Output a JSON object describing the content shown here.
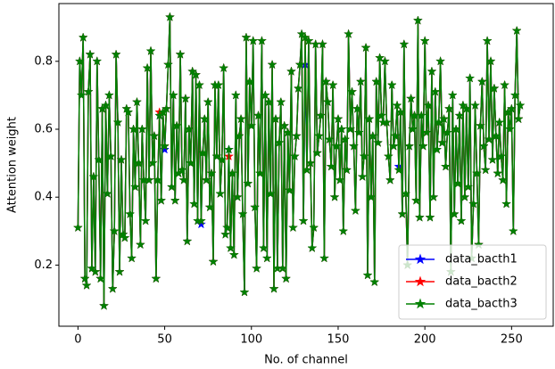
{
  "chart_data": {
    "type": "line",
    "xlabel": "No. of channel",
    "ylabel": "Attention weight",
    "xlim": [
      -11,
      274
    ],
    "ylim": [
      0.02,
      0.97
    ],
    "xticks": [
      0,
      50,
      100,
      150,
      200,
      250
    ],
    "yticks": [
      0.2,
      0.4,
      0.6,
      0.8
    ],
    "legend": "lower right",
    "marker": "star",
    "series": [
      {
        "name": "data_bacth1",
        "color": "#0000ff",
        "values": [
          0.31,
          0.8,
          0.7,
          0.87,
          0.16,
          0.14,
          0.71,
          0.82,
          0.19,
          0.46,
          0.18,
          0.8,
          0.51,
          0.16,
          0.66,
          0.08,
          0.67,
          0.41,
          0.7,
          0.52,
          0.13,
          0.3,
          0.82,
          0.62,
          0.18,
          0.51,
          0.29,
          0.28,
          0.66,
          0.65,
          0.35,
          0.22,
          0.6,
          0.43,
          0.68,
          0.5,
          0.26,
          0.6,
          0.45,
          0.33,
          0.78,
          0.45,
          0.83,
          0.5,
          0.58,
          0.16,
          0.45,
          0.64,
          0.39,
          0.65,
          0.54,
          0.66,
          0.79,
          0.93,
          0.43,
          0.7,
          0.39,
          0.61,
          0.47,
          0.82,
          0.48,
          0.45,
          0.69,
          0.27,
          0.6,
          0.5,
          0.77,
          0.38,
          0.76,
          0.33,
          0.73,
          0.32,
          0.53,
          0.63,
          0.45,
          0.68,
          0.37,
          0.47,
          0.21,
          0.73,
          0.52,
          0.73,
          0.41,
          0.51,
          0.78,
          0.29,
          0.31,
          0.54,
          0.25,
          0.47,
          0.23,
          0.7,
          0.4,
          0.58,
          0.63,
          0.35,
          0.12,
          0.87,
          0.44,
          0.74,
          0.61,
          0.86,
          0.37,
          0.19,
          0.64,
          0.47,
          0.86,
          0.25,
          0.7,
          0.22,
          0.68,
          0.41,
          0.79,
          0.13,
          0.63,
          0.19,
          0.56,
          0.68,
          0.19,
          0.61,
          0.16,
          0.59,
          0.42,
          0.77,
          0.31,
          0.52,
          0.58,
          0.72,
          0.79,
          0.88,
          0.33,
          0.79,
          0.48,
          0.86,
          0.5,
          0.25,
          0.31,
          0.85,
          0.53,
          0.58,
          0.64,
          0.85,
          0.22,
          0.74,
          0.68,
          0.57,
          0.49,
          0.73,
          0.4,
          0.55,
          0.63,
          0.45,
          0.6,
          0.3,
          0.57,
          0.48,
          0.88,
          0.6,
          0.71,
          0.55,
          0.36,
          0.66,
          0.59,
          0.74,
          0.46,
          0.52,
          0.84,
          0.17,
          0.63,
          0.4,
          0.58,
          0.15,
          0.74,
          0.56,
          0.81,
          0.64,
          0.62,
          0.8,
          0.62,
          0.52,
          0.45,
          0.73,
          0.55,
          0.58,
          0.67,
          0.49,
          0.65,
          0.35,
          0.85,
          0.41,
          0.2,
          0.55,
          0.69,
          0.6,
          0.64,
          0.39,
          0.92,
          0.34,
          0.64,
          0.55,
          0.86,
          0.59,
          0.67,
          0.34,
          0.77,
          0.4,
          0.71,
          0.54,
          0.62,
          0.8,
          0.56,
          0.63,
          0.49,
          0.59,
          0.66,
          0.18,
          0.7,
          0.35,
          0.6,
          0.44,
          0.64,
          0.33,
          0.67,
          0.4,
          0.66,
          0.43,
          0.75,
          0.22,
          0.38,
          0.67,
          0.47,
          0.26,
          0.61,
          0.74,
          0.55,
          0.48,
          0.86,
          0.57,
          0.8,
          0.51,
          0.72,
          0.58,
          0.47,
          0.62,
          0.52,
          0.45,
          0.73,
          0.38,
          0.65,
          0.6,
          0.66,
          0.3,
          0.7,
          0.89,
          0.63,
          0.67
        ]
      },
      {
        "name": "data_bacth2",
        "color": "#ff0000",
        "values": [
          0.31,
          0.8,
          0.7,
          0.87,
          0.16,
          0.14,
          0.71,
          0.82,
          0.19,
          0.46,
          0.18,
          0.8,
          0.51,
          0.16,
          0.66,
          0.08,
          0.67,
          0.41,
          0.7,
          0.52,
          0.13,
          0.3,
          0.82,
          0.62,
          0.18,
          0.51,
          0.29,
          0.28,
          0.66,
          0.65,
          0.35,
          0.22,
          0.6,
          0.43,
          0.68,
          0.5,
          0.26,
          0.6,
          0.45,
          0.33,
          0.78,
          0.45,
          0.83,
          0.5,
          0.58,
          0.16,
          0.45,
          0.65,
          0.39,
          0.65,
          0.55,
          0.66,
          0.79,
          0.93,
          0.43,
          0.7,
          0.39,
          0.61,
          0.47,
          0.82,
          0.48,
          0.45,
          0.69,
          0.27,
          0.6,
          0.5,
          0.77,
          0.38,
          0.76,
          0.33,
          0.73,
          0.33,
          0.53,
          0.63,
          0.45,
          0.68,
          0.37,
          0.47,
          0.21,
          0.73,
          0.52,
          0.73,
          0.41,
          0.51,
          0.78,
          0.29,
          0.31,
          0.52,
          0.25,
          0.47,
          0.23,
          0.7,
          0.4,
          0.58,
          0.63,
          0.35,
          0.12,
          0.87,
          0.44,
          0.74,
          0.61,
          0.86,
          0.37,
          0.19,
          0.64,
          0.47,
          0.86,
          0.25,
          0.7,
          0.22,
          0.68,
          0.41,
          0.79,
          0.13,
          0.63,
          0.19,
          0.56,
          0.68,
          0.19,
          0.61,
          0.16,
          0.59,
          0.42,
          0.77,
          0.31,
          0.52,
          0.58,
          0.72,
          0.79,
          0.88,
          0.33,
          0.87,
          0.48,
          0.86,
          0.5,
          0.25,
          0.31,
          0.85,
          0.53,
          0.58,
          0.64,
          0.85,
          0.22,
          0.74,
          0.68,
          0.57,
          0.49,
          0.73,
          0.4,
          0.55,
          0.63,
          0.45,
          0.6,
          0.3,
          0.57,
          0.48,
          0.88,
          0.6,
          0.71,
          0.55,
          0.36,
          0.66,
          0.59,
          0.74,
          0.46,
          0.52,
          0.84,
          0.17,
          0.63,
          0.4,
          0.58,
          0.15,
          0.74,
          0.56,
          0.81,
          0.64,
          0.62,
          0.8,
          0.62,
          0.52,
          0.45,
          0.73,
          0.55,
          0.58,
          0.67,
          0.48,
          0.65,
          0.35,
          0.85,
          0.41,
          0.2,
          0.55,
          0.69,
          0.6,
          0.64,
          0.39,
          0.92,
          0.34,
          0.64,
          0.55,
          0.86,
          0.59,
          0.67,
          0.34,
          0.77,
          0.4,
          0.71,
          0.54,
          0.62,
          0.8,
          0.56,
          0.63,
          0.49,
          0.59,
          0.66,
          0.18,
          0.7,
          0.35,
          0.6,
          0.44,
          0.64,
          0.33,
          0.67,
          0.4,
          0.66,
          0.43,
          0.75,
          0.22,
          0.38,
          0.67,
          0.47,
          0.26,
          0.61,
          0.74,
          0.55,
          0.48,
          0.86,
          0.57,
          0.8,
          0.51,
          0.72,
          0.58,
          0.47,
          0.62,
          0.52,
          0.45,
          0.73,
          0.38,
          0.65,
          0.6,
          0.66,
          0.3,
          0.7,
          0.89,
          0.63,
          0.67
        ]
      },
      {
        "name": "data_bacth3",
        "color": "#008000",
        "values": [
          0.31,
          0.8,
          0.7,
          0.87,
          0.16,
          0.14,
          0.71,
          0.82,
          0.19,
          0.46,
          0.18,
          0.8,
          0.51,
          0.16,
          0.66,
          0.08,
          0.67,
          0.41,
          0.7,
          0.52,
          0.13,
          0.3,
          0.82,
          0.62,
          0.18,
          0.51,
          0.29,
          0.28,
          0.66,
          0.65,
          0.35,
          0.22,
          0.6,
          0.43,
          0.68,
          0.5,
          0.26,
          0.6,
          0.45,
          0.33,
          0.78,
          0.45,
          0.83,
          0.5,
          0.58,
          0.16,
          0.45,
          0.64,
          0.39,
          0.65,
          0.55,
          0.66,
          0.79,
          0.93,
          0.43,
          0.7,
          0.39,
          0.61,
          0.47,
          0.82,
          0.48,
          0.45,
          0.69,
          0.27,
          0.6,
          0.5,
          0.77,
          0.38,
          0.76,
          0.33,
          0.73,
          0.33,
          0.53,
          0.63,
          0.45,
          0.68,
          0.37,
          0.47,
          0.21,
          0.73,
          0.52,
          0.73,
          0.41,
          0.51,
          0.78,
          0.29,
          0.31,
          0.54,
          0.25,
          0.47,
          0.23,
          0.7,
          0.4,
          0.58,
          0.63,
          0.35,
          0.12,
          0.87,
          0.44,
          0.74,
          0.61,
          0.86,
          0.37,
          0.19,
          0.64,
          0.47,
          0.86,
          0.25,
          0.7,
          0.22,
          0.68,
          0.41,
          0.79,
          0.13,
          0.63,
          0.19,
          0.56,
          0.68,
          0.19,
          0.61,
          0.16,
          0.59,
          0.42,
          0.77,
          0.31,
          0.52,
          0.58,
          0.72,
          0.79,
          0.88,
          0.33,
          0.87,
          0.48,
          0.86,
          0.5,
          0.25,
          0.31,
          0.85,
          0.53,
          0.58,
          0.64,
          0.85,
          0.22,
          0.74,
          0.68,
          0.57,
          0.49,
          0.73,
          0.4,
          0.55,
          0.63,
          0.45,
          0.6,
          0.3,
          0.57,
          0.48,
          0.88,
          0.6,
          0.71,
          0.55,
          0.36,
          0.66,
          0.59,
          0.74,
          0.46,
          0.52,
          0.84,
          0.17,
          0.63,
          0.4,
          0.58,
          0.15,
          0.74,
          0.56,
          0.81,
          0.64,
          0.62,
          0.8,
          0.62,
          0.52,
          0.45,
          0.73,
          0.55,
          0.58,
          0.67,
          0.48,
          0.65,
          0.35,
          0.85,
          0.41,
          0.2,
          0.55,
          0.69,
          0.6,
          0.64,
          0.39,
          0.92,
          0.34,
          0.64,
          0.55,
          0.86,
          0.59,
          0.67,
          0.34,
          0.77,
          0.4,
          0.71,
          0.54,
          0.62,
          0.8,
          0.56,
          0.63,
          0.49,
          0.59,
          0.66,
          0.18,
          0.7,
          0.35,
          0.6,
          0.44,
          0.64,
          0.33,
          0.67,
          0.4,
          0.66,
          0.43,
          0.75,
          0.22,
          0.38,
          0.67,
          0.47,
          0.26,
          0.61,
          0.74,
          0.55,
          0.48,
          0.86,
          0.57,
          0.8,
          0.51,
          0.72,
          0.58,
          0.47,
          0.62,
          0.52,
          0.45,
          0.73,
          0.38,
          0.65,
          0.6,
          0.66,
          0.3,
          0.7,
          0.89,
          0.63,
          0.67
        ]
      }
    ]
  }
}
